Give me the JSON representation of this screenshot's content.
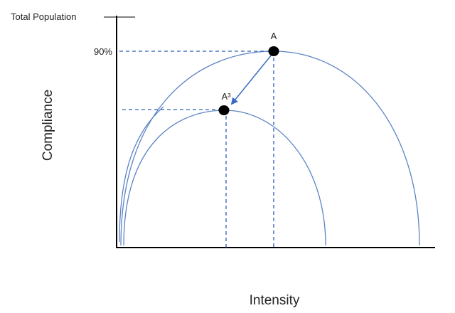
{
  "labels": {
    "top_axis": "Total Population",
    "y_value": "90%",
    "point_a": "A",
    "point_a3": "A³",
    "y_axis": "Compliance",
    "x_axis": "Intensity"
  }
}
